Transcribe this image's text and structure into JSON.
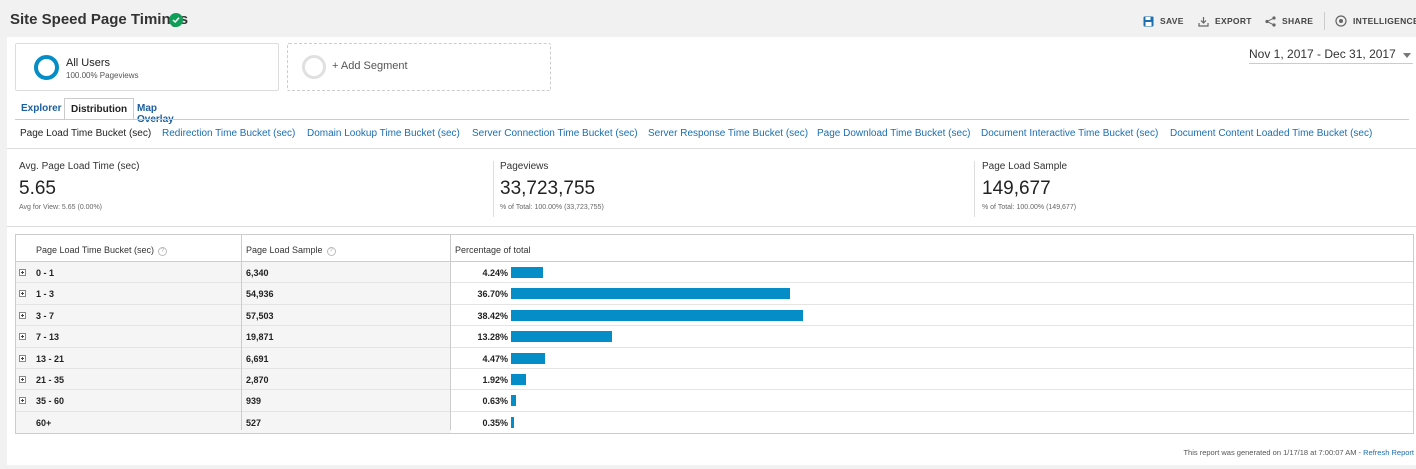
{
  "header": {
    "title": "Site Speed Page Timings",
    "actions": [
      {
        "label": "SAVE",
        "icon": "save-icon"
      },
      {
        "label": "EXPORT",
        "icon": "export-icon"
      },
      {
        "label": "SHARE",
        "icon": "share-icon"
      },
      {
        "label": "INTELLIGENCE",
        "icon": "intelligence-icon"
      }
    ]
  },
  "segments": {
    "all_users": {
      "name": "All Users",
      "sub": "100.00% Pageviews"
    },
    "add_label": "+ Add Segment"
  },
  "date_range": "Nov 1, 2017 - Dec 31, 2017",
  "tabs": [
    {
      "label": "Explorer",
      "active": false
    },
    {
      "label": "Distribution",
      "active": true
    },
    {
      "label": "Map Overlay",
      "active": false
    }
  ],
  "dimensions": [
    "Page Load Time Bucket (sec)",
    "Redirection Time Bucket (sec)",
    "Domain Lookup Time Bucket (sec)",
    "Server Connection Time Bucket (sec)",
    "Server Response Time Bucket (sec)",
    "Page Download Time Bucket (sec)",
    "Document Interactive Time Bucket (sec)",
    "Document Content Loaded Time Bucket (sec)"
  ],
  "metrics": [
    {
      "label": "Avg. Page Load Time (sec)",
      "value": "5.65",
      "sub": "Avg for View: 5.65 (0.00%)"
    },
    {
      "label": "Pageviews",
      "value": "33,723,755",
      "sub": "% of Total: 100.00% (33,723,755)"
    },
    {
      "label": "Page Load Sample",
      "value": "149,677",
      "sub": "% of Total: 100.00% (149,677)"
    }
  ],
  "table": {
    "headers": [
      "Page Load Time Bucket (sec)",
      "Page Load Sample",
      "Percentage of total"
    ],
    "help_glyph": "?",
    "rows": [
      {
        "bucket": "0 - 1",
        "sample": "6,340",
        "pct": "4.24%",
        "pct_value": 4.24,
        "expandable": true
      },
      {
        "bucket": "1 - 3",
        "sample": "54,936",
        "pct": "36.70%",
        "pct_value": 36.7,
        "expandable": true
      },
      {
        "bucket": "3 - 7",
        "sample": "57,503",
        "pct": "38.42%",
        "pct_value": 38.42,
        "expandable": true
      },
      {
        "bucket": "7 - 13",
        "sample": "19,871",
        "pct": "13.28%",
        "pct_value": 13.28,
        "expandable": true
      },
      {
        "bucket": "13 - 21",
        "sample": "6,691",
        "pct": "4.47%",
        "pct_value": 4.47,
        "expandable": true
      },
      {
        "bucket": "21 - 35",
        "sample": "2,870",
        "pct": "1.92%",
        "pct_value": 1.92,
        "expandable": true
      },
      {
        "bucket": "35 - 60",
        "sample": "939",
        "pct": "0.63%",
        "pct_value": 0.63,
        "expandable": true
      },
      {
        "bucket": "60+",
        "sample": "527",
        "pct": "0.35%",
        "pct_value": 0.35,
        "expandable": false
      }
    ]
  },
  "footer": {
    "text": "This report was generated on 1/17/18 at 7:00:07 AM - ",
    "link": "Refresh Report"
  },
  "colors": {
    "accent": "#058dc7",
    "verified": "#0f9d58",
    "link": "#1a6fb0"
  }
}
